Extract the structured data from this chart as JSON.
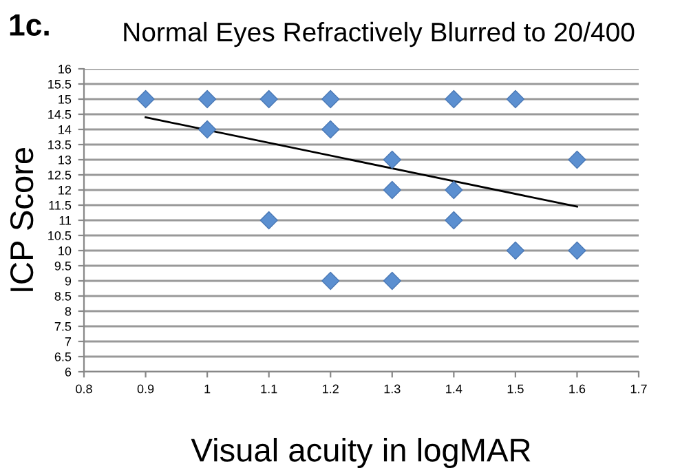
{
  "chart_data": {
    "type": "scatter",
    "title": "Normal Eyes Refractively Blurred to 20/400",
    "xlabel": "Visual acuity in logMAR",
    "ylabel": "ICP Score",
    "annotations": [
      "1c."
    ],
    "series": [
      {
        "color": "#5b8fd0",
        "marker": "diamond",
        "x": [
          0.9,
          1.0,
          1.1,
          1.2,
          1.4,
          1.5,
          1.0,
          1.2,
          1.3,
          1.6,
          1.3,
          1.4,
          1.1,
          1.4,
          1.5,
          1.6,
          1.2,
          1.3
        ],
        "values": [
          15,
          15,
          15,
          15,
          15,
          15,
          14,
          14,
          13,
          13,
          12,
          12,
          11,
          11,
          10,
          10,
          9,
          9
        ]
      },
      {
        "type": "line",
        "color": "#000000",
        "marker": "none",
        "x": [
          0.9,
          1.6
        ],
        "values": [
          14.4,
          11.45
        ]
      }
    ],
    "xlim": [
      0.8,
      1.7
    ],
    "xticks": [
      0.8,
      0.9,
      1,
      1.1,
      1.2,
      1.3,
      1.4,
      1.5,
      1.6,
      1.7
    ],
    "ylim": [
      6,
      16
    ],
    "yticks": [
      6,
      6.5,
      7,
      7.5,
      8,
      8.5,
      9,
      9.5,
      10,
      10.5,
      11,
      11.5,
      12,
      12.5,
      13,
      13.5,
      14,
      14.5,
      15,
      15.5,
      16
    ],
    "grid": "y",
    "legend": false
  }
}
